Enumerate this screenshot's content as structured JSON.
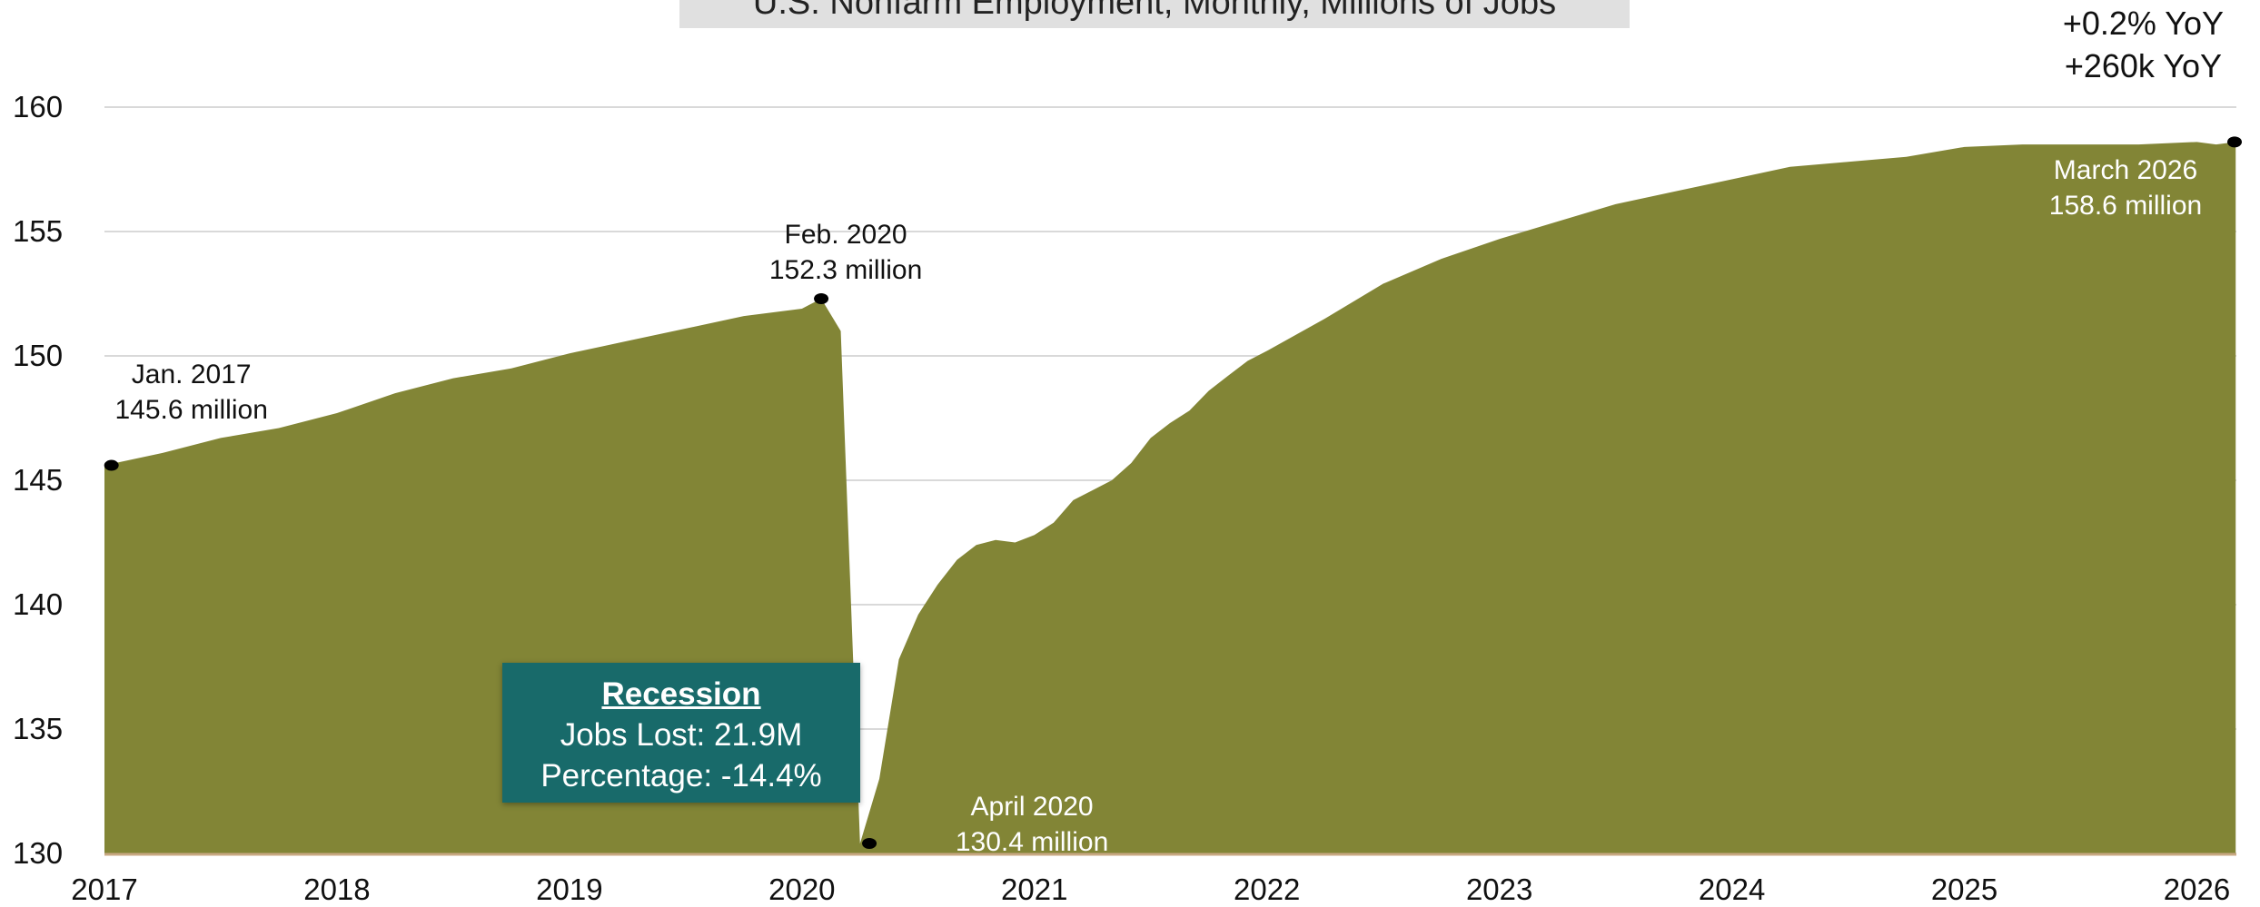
{
  "chart_data": {
    "type": "area",
    "title": "U.S. Nonfarm Employment, Monthly, Millions of Jobs",
    "ylim": [
      130,
      160
    ],
    "yticks": [
      130,
      135,
      140,
      145,
      150,
      155,
      160
    ],
    "xlim": [
      2017.0,
      2026.17
    ],
    "xticks": [
      "2017",
      "2018",
      "2019",
      "2020",
      "2021",
      "2022",
      "2023",
      "2024",
      "2025",
      "2026"
    ],
    "grid": true,
    "color": "#828536",
    "x": [
      2017.0,
      2017.25,
      2017.5,
      2017.75,
      2018.0,
      2018.25,
      2018.5,
      2018.75,
      2019.0,
      2019.25,
      2019.5,
      2019.75,
      2020.0,
      2020.083,
      2020.167,
      2020.25,
      2020.333,
      2020.417,
      2020.5,
      2020.583,
      2020.667,
      2020.75,
      2020.833,
      2020.917,
      2021.0,
      2021.083,
      2021.167,
      2021.25,
      2021.333,
      2021.417,
      2021.5,
      2021.583,
      2021.667,
      2021.75,
      2021.833,
      2021.917,
      2022.0,
      2022.25,
      2022.5,
      2022.75,
      2023.0,
      2023.25,
      2023.5,
      2023.75,
      2024.0,
      2024.25,
      2024.5,
      2024.75,
      2025.0,
      2025.25,
      2025.5,
      2025.75,
      2026.0,
      2026.083,
      2026.167
    ],
    "y": [
      145.6,
      146.1,
      146.7,
      147.1,
      147.7,
      148.5,
      149.1,
      149.5,
      150.1,
      150.6,
      151.1,
      151.6,
      151.9,
      152.3,
      151.0,
      130.4,
      133.0,
      137.8,
      139.6,
      140.8,
      141.8,
      142.4,
      142.6,
      142.5,
      142.8,
      143.3,
      144.2,
      144.6,
      145.0,
      145.7,
      146.7,
      147.3,
      147.8,
      148.6,
      149.2,
      149.8,
      150.2,
      151.5,
      152.9,
      153.9,
      154.7,
      155.4,
      156.1,
      156.6,
      157.1,
      157.6,
      157.8,
      158.0,
      158.4,
      158.5,
      158.5,
      158.5,
      158.6,
      158.5,
      158.6
    ],
    "annotations": [
      {
        "key": "jan2017",
        "x": 2017.03,
        "y": 145.6,
        "line1": "Jan. 2017",
        "line2": "145.6 million"
      },
      {
        "key": "feb2020",
        "x": 2020.083,
        "y": 152.3,
        "line1": "Feb. 2020",
        "line2": "152.3 million"
      },
      {
        "key": "apr2020",
        "x": 2020.29,
        "y": 130.4,
        "line1": "April 2020",
        "line2": "130.4 million"
      },
      {
        "key": "mar2026",
        "x": 2026.167,
        "y": 158.6,
        "line1": "March 2026",
        "line2": "158.6 million"
      }
    ],
    "yoy": [
      "+0.2% YoY",
      "+260k YoY"
    ],
    "recession": {
      "title": "Recession",
      "jobs_lost": "Jobs Lost: 21.9M",
      "percentage": "Percentage: -14.4%"
    }
  }
}
